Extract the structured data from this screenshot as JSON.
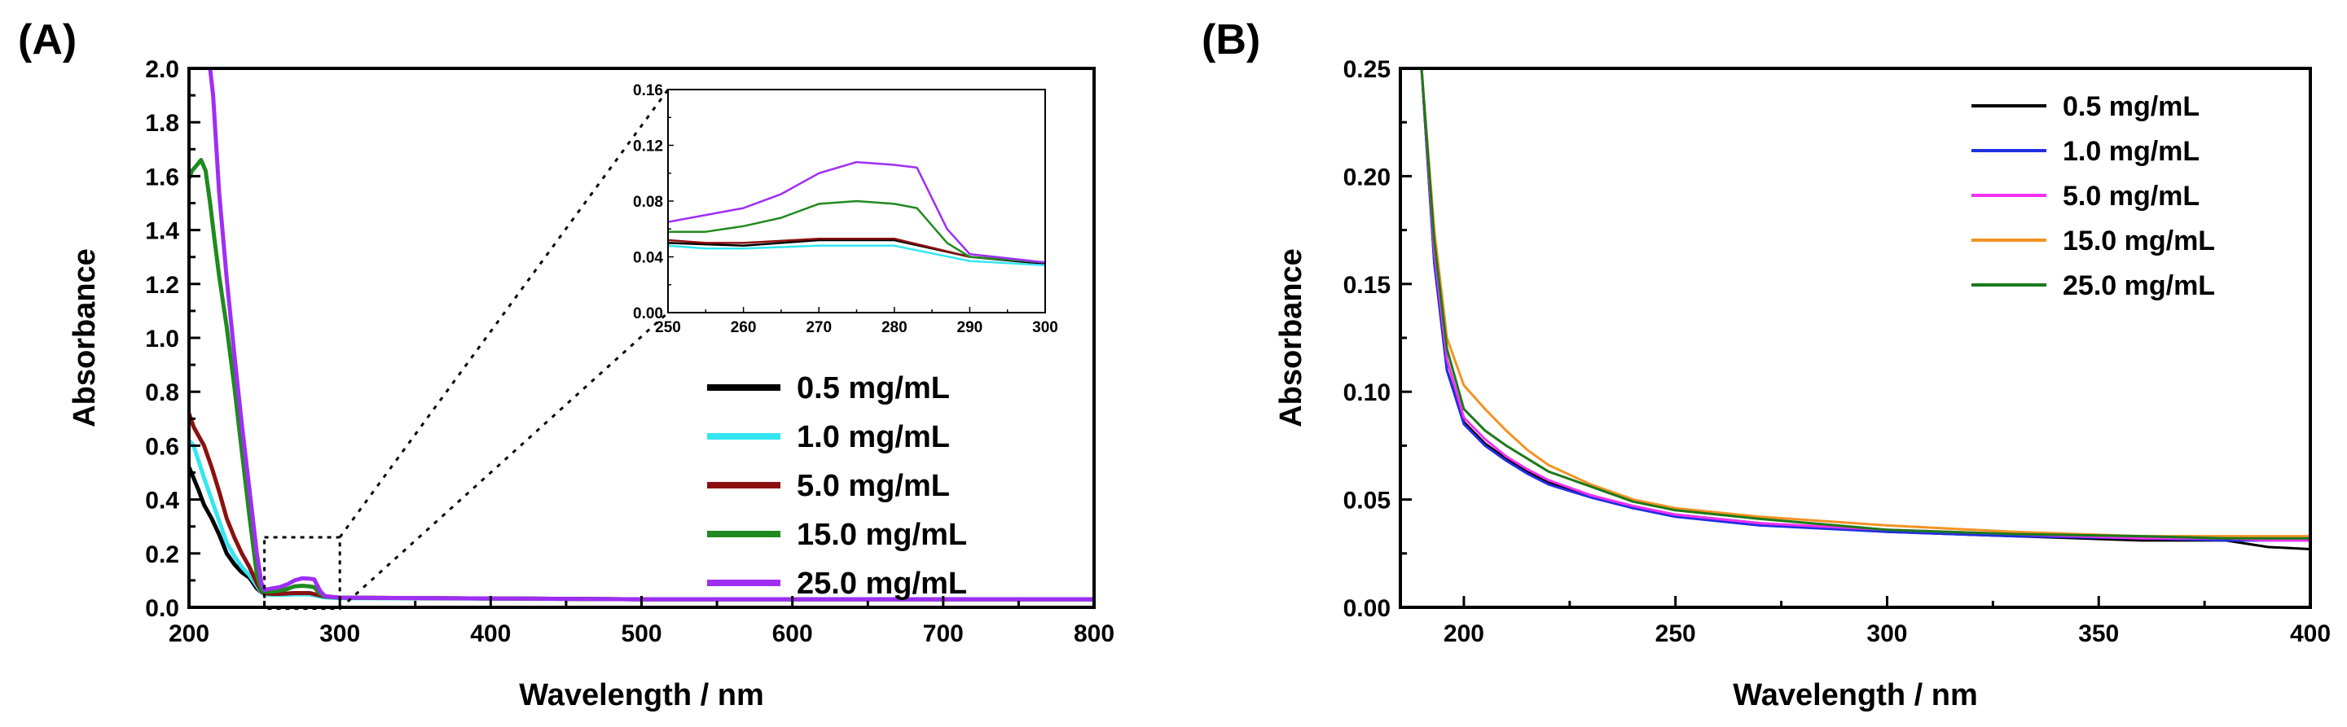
{
  "chart_data": [
    {
      "type": "line",
      "panel_label": "(A)",
      "xlabel": "Wavelength / nm",
      "ylabel": "Absorbance",
      "xlim": [
        200,
        800
      ],
      "ylim": [
        0.0,
        2.0
      ],
      "xticks": [
        "200",
        "300",
        "400",
        "500",
        "600",
        "700",
        "800"
      ],
      "yticks": [
        "0.0",
        "0.2",
        "0.4",
        "0.6",
        "0.8",
        "1.0",
        "1.2",
        "1.4",
        "1.6",
        "1.8",
        "2.0"
      ],
      "legend_position": "bottom-right",
      "series": [
        {
          "name": "0.5 mg/mL",
          "color": "#000000",
          "x": [
            200,
            203,
            206,
            210,
            215,
            220,
            225,
            230,
            235,
            240,
            245,
            248,
            250,
            255,
            260,
            270,
            280,
            290,
            300,
            400,
            500,
            600,
            700,
            800
          ],
          "y": [
            0.52,
            0.48,
            0.44,
            0.38,
            0.33,
            0.27,
            0.2,
            0.16,
            0.13,
            0.11,
            0.07,
            0.055,
            0.05,
            0.049,
            0.048,
            0.052,
            0.052,
            0.04,
            0.035,
            0.033,
            0.03,
            0.03,
            0.03,
            0.03
          ]
        },
        {
          "name": "1.0 mg/mL",
          "color": "#33e6f2",
          "x": [
            200,
            203,
            206,
            210,
            215,
            220,
            225,
            230,
            235,
            240,
            245,
            248,
            250,
            255,
            260,
            270,
            280,
            290,
            300,
            400,
            500,
            600,
            700,
            800
          ],
          "y": [
            0.62,
            0.6,
            0.55,
            0.48,
            0.4,
            0.32,
            0.24,
            0.19,
            0.15,
            0.12,
            0.08,
            0.055,
            0.048,
            0.046,
            0.046,
            0.048,
            0.048,
            0.037,
            0.034,
            0.032,
            0.03,
            0.03,
            0.03,
            0.03
          ]
        },
        {
          "name": "5.0 mg/mL",
          "color": "#8b1111",
          "x": [
            200,
            203,
            206,
            210,
            215,
            220,
            225,
            230,
            235,
            240,
            245,
            248,
            250,
            255,
            260,
            270,
            280,
            290,
            300,
            400,
            500,
            600,
            700,
            800
          ],
          "y": [
            0.72,
            0.67,
            0.64,
            0.6,
            0.52,
            0.43,
            0.33,
            0.26,
            0.2,
            0.15,
            0.09,
            0.06,
            0.052,
            0.05,
            0.05,
            0.053,
            0.053,
            0.04,
            0.036,
            0.033,
            0.03,
            0.03,
            0.03,
            0.03
          ]
        },
        {
          "name": "15.0 mg/mL",
          "color": "#1f8a1f",
          "x": [
            200,
            202,
            205,
            208,
            211,
            214,
            217,
            220,
            225,
            230,
            235,
            240,
            245,
            248,
            250,
            255,
            260,
            265,
            270,
            275,
            280,
            283,
            287,
            290,
            300,
            400,
            500,
            600,
            700,
            800
          ],
          "y": [
            1.59,
            1.62,
            1.64,
            1.66,
            1.62,
            1.5,
            1.36,
            1.23,
            1.04,
            0.82,
            0.58,
            0.34,
            0.12,
            0.065,
            0.058,
            0.058,
            0.062,
            0.068,
            0.078,
            0.08,
            0.078,
            0.075,
            0.05,
            0.04,
            0.036,
            0.033,
            0.03,
            0.03,
            0.03,
            0.03
          ]
        },
        {
          "name": "25.0 mg/mL",
          "color": "#9f2ef5",
          "x": [
            214,
            216,
            220,
            225,
            230,
            235,
            240,
            245,
            248,
            250,
            255,
            260,
            265,
            270,
            275,
            280,
            283,
            287,
            290,
            300,
            400,
            500,
            600,
            700,
            800
          ],
          "y": [
            2.0,
            1.9,
            1.54,
            1.22,
            0.94,
            0.68,
            0.44,
            0.2,
            0.09,
            0.065,
            0.07,
            0.075,
            0.085,
            0.1,
            0.108,
            0.106,
            0.104,
            0.06,
            0.042,
            0.036,
            0.033,
            0.03,
            0.03,
            0.03,
            0.03
          ]
        }
      ],
      "inset": {
        "xlim": [
          250,
          300
        ],
        "ylim": [
          0.0,
          0.16
        ],
        "xticks": [
          "250",
          "260",
          "270",
          "280",
          "290",
          "300"
        ],
        "yticks": [
          "0.00",
          "0.04",
          "0.08",
          "0.12",
          "0.16"
        ]
      }
    },
    {
      "type": "line",
      "panel_label": "(B)",
      "xlabel": "Wavelength / nm",
      "ylabel": "Absorbance",
      "xlim": [
        185,
        400
      ],
      "ylim": [
        0.0,
        0.25
      ],
      "xticks": [
        "200",
        "250",
        "300",
        "350",
        "400"
      ],
      "yticks": [
        "0.00",
        "0.05",
        "0.10",
        "0.15",
        "0.20",
        "0.25"
      ],
      "legend_position": "top-right",
      "series": [
        {
          "name": "0.5 mg/mL",
          "color": "#000000",
          "x": [
            190,
            193,
            196,
            200,
            205,
            210,
            215,
            220,
            230,
            240,
            250,
            270,
            300,
            330,
            360,
            380,
            390,
            400
          ],
          "y": [
            0.25,
            0.16,
            0.11,
            0.086,
            0.076,
            0.069,
            0.063,
            0.058,
            0.052,
            0.046,
            0.043,
            0.039,
            0.035,
            0.033,
            0.031,
            0.031,
            0.028,
            0.027
          ]
        },
        {
          "name": "1.0 mg/mL",
          "color": "#1f2fe0",
          "x": [
            190,
            193,
            196,
            200,
            205,
            210,
            215,
            220,
            230,
            240,
            250,
            270,
            300,
            330,
            360,
            380,
            390,
            400
          ],
          "y": [
            0.25,
            0.16,
            0.11,
            0.085,
            0.075,
            0.068,
            0.062,
            0.057,
            0.051,
            0.046,
            0.042,
            0.038,
            0.035,
            0.033,
            0.032,
            0.031,
            0.031,
            0.031
          ]
        },
        {
          "name": "5.0 mg/mL",
          "color": "#f230f2",
          "x": [
            190,
            193,
            196,
            200,
            205,
            210,
            215,
            220,
            230,
            240,
            250,
            270,
            300,
            330,
            360,
            380,
            390,
            400
          ],
          "y": [
            0.25,
            0.165,
            0.115,
            0.088,
            0.078,
            0.07,
            0.064,
            0.059,
            0.052,
            0.047,
            0.043,
            0.039,
            0.036,
            0.034,
            0.032,
            0.032,
            0.031,
            0.031
          ]
        },
        {
          "name": "15.0 mg/mL",
          "color": "#f39222",
          "x": [
            190,
            193,
            196,
            200,
            205,
            210,
            215,
            220,
            230,
            240,
            250,
            270,
            300,
            330,
            360,
            380,
            390,
            400
          ],
          "y": [
            0.25,
            0.175,
            0.125,
            0.103,
            0.092,
            0.082,
            0.073,
            0.066,
            0.057,
            0.05,
            0.046,
            0.042,
            0.038,
            0.035,
            0.033,
            0.033,
            0.033,
            0.033
          ]
        },
        {
          "name": "25.0 mg/mL",
          "color": "#1a7a1a",
          "x": [
            190,
            193,
            196,
            200,
            205,
            210,
            215,
            220,
            230,
            240,
            250,
            270,
            300,
            330,
            360,
            380,
            390,
            400
          ],
          "y": [
            0.25,
            0.17,
            0.12,
            0.092,
            0.082,
            0.075,
            0.069,
            0.063,
            0.056,
            0.049,
            0.045,
            0.041,
            0.036,
            0.034,
            0.033,
            0.032,
            0.032,
            0.032
          ]
        }
      ]
    }
  ]
}
